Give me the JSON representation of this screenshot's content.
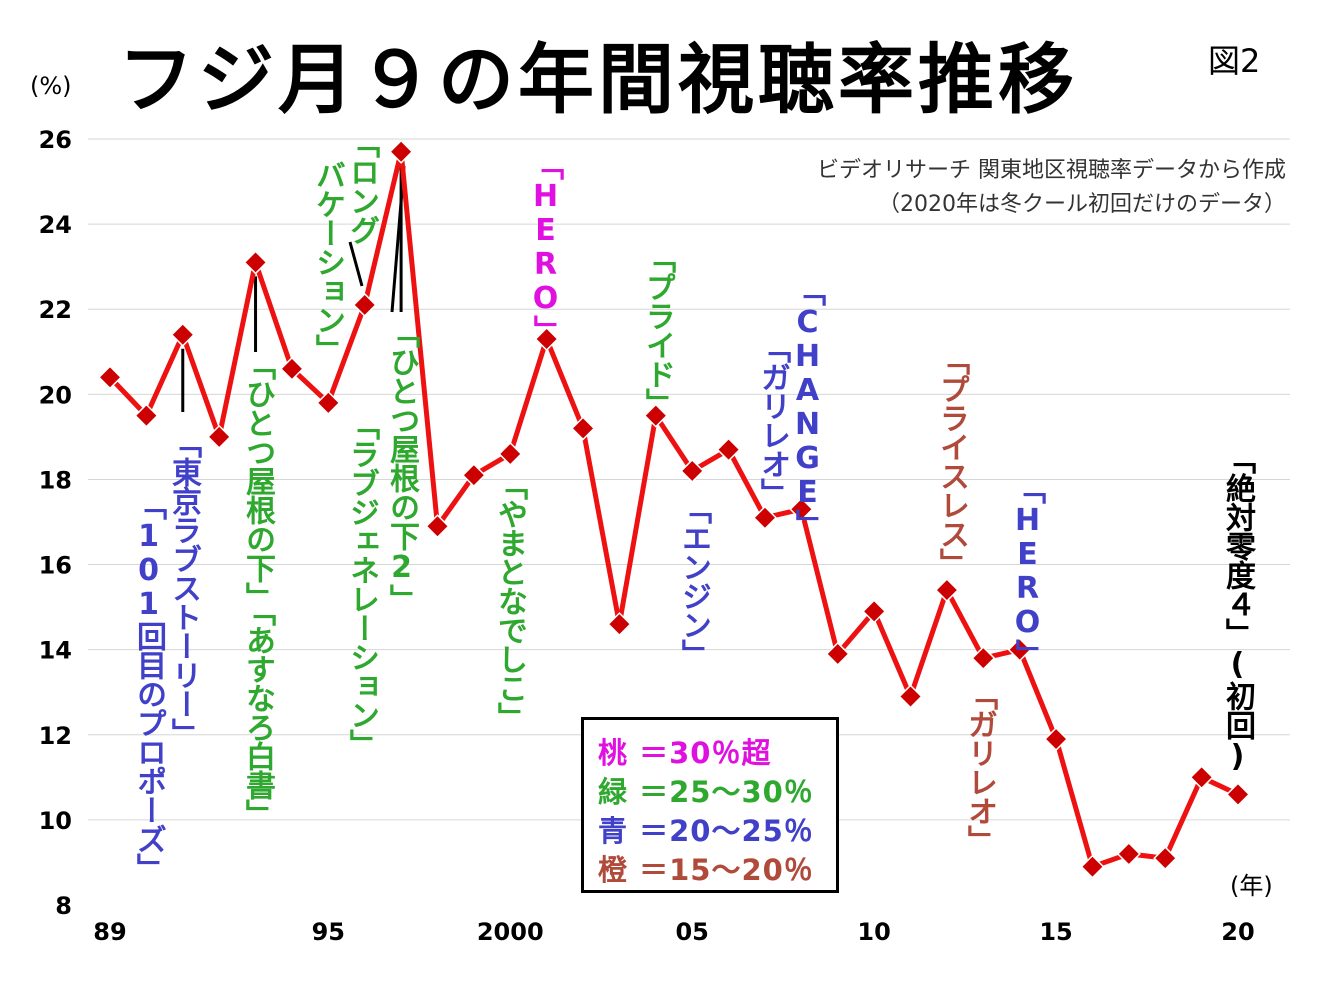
{
  "title": "フジ月９の年間視聴率推移",
  "figure_label": "図2",
  "y_unit": "(%)",
  "x_unit": "(年)",
  "source_line1": "ビデオリサーチ 関東地区視聴率データから作成",
  "source_line2": "（2020年は冬クール初回だけのデータ）",
  "colors": {
    "line": "#ee1111",
    "marker": "#cc0000",
    "grid": "#d6d6d6",
    "blue": "#4040c8",
    "green": "#2ea82e",
    "pink": "#e010e0",
    "brown": "#b04a3a"
  },
  "legend": [
    {
      "label": "桃 ＝30％超",
      "color": "#e010e0"
    },
    {
      "label": "緑 ＝25〜30％",
      "color": "#2ea82e"
    },
    {
      "label": "青 ＝20〜25％",
      "color": "#4040c8"
    },
    {
      "label": "橙 ＝15〜20％",
      "color": "#b04a3a"
    }
  ],
  "annotations": [
    {
      "text": "「101回目のプロポーズ」",
      "color": "blue"
    },
    {
      "text": "「東京ラブストーリー」",
      "color": "blue"
    },
    {
      "text": "「ひとつ屋根の下」「あすなろ白書」",
      "color": "green"
    },
    {
      "text": "「ロング",
      "color": "green"
    },
    {
      "text": "バケーション」",
      "color": "green"
    },
    {
      "text": "「ラブジェネレーション」",
      "color": "green"
    },
    {
      "text": "「ひとつ屋根の下2」",
      "color": "green"
    },
    {
      "text": "「やまとなでしこ」",
      "color": "green"
    },
    {
      "text": "「HERO」",
      "color": "pink"
    },
    {
      "text": "「プライド」",
      "color": "green"
    },
    {
      "text": "「エンジン」",
      "color": "blue"
    },
    {
      "text": "「ガリレオ」",
      "color": "blue"
    },
    {
      "text": "「CHANGE」",
      "color": "blue"
    },
    {
      "text": "「プライスレス」",
      "color": "brown"
    },
    {
      "text": "「ガリレオ」",
      "color": "brown"
    },
    {
      "text": "「HERO」",
      "color": "blue"
    },
    {
      "text": "「絶対零度４」(初回)",
      "color": "black"
    }
  ],
  "chart_data": {
    "type": "line",
    "x": [
      1989,
      1990,
      1991,
      1992,
      1993,
      1994,
      1995,
      1996,
      1997,
      1998,
      1999,
      2000,
      2001,
      2002,
      2003,
      2004,
      2005,
      2006,
      2007,
      2008,
      2009,
      2010,
      2011,
      2012,
      2013,
      2014,
      2015,
      2016,
      2017,
      2018,
      2019,
      2020
    ],
    "series": [
      {
        "values": [
          20.4,
          19.5,
          21.4,
          19.0,
          23.1,
          20.6,
          19.8,
          22.1,
          25.7,
          16.9,
          18.1,
          18.6,
          21.3,
          19.2,
          14.6,
          19.5,
          18.2,
          18.7,
          17.1,
          17.3,
          13.9,
          14.9,
          12.9,
          15.4,
          13.8,
          14.0,
          11.9,
          8.9,
          9.2,
          9.1,
          11.0,
          10.6
        ]
      }
    ],
    "xlim": [
      1989,
      2020
    ],
    "ylim": [
      8,
      26
    ],
    "y_ticks": [
      8,
      10,
      12,
      14,
      16,
      18,
      20,
      22,
      24,
      26
    ],
    "x_ticks": [
      {
        "value": 1989,
        "label": "89"
      },
      {
        "value": 1995,
        "label": "95"
      },
      {
        "value": 2000,
        "label": "2000"
      },
      {
        "value": 2005,
        "label": "05"
      },
      {
        "value": 2010,
        "label": "10"
      },
      {
        "value": 2015,
        "label": "15"
      },
      {
        "value": 2020,
        "label": "20"
      }
    ],
    "grid": true
  }
}
